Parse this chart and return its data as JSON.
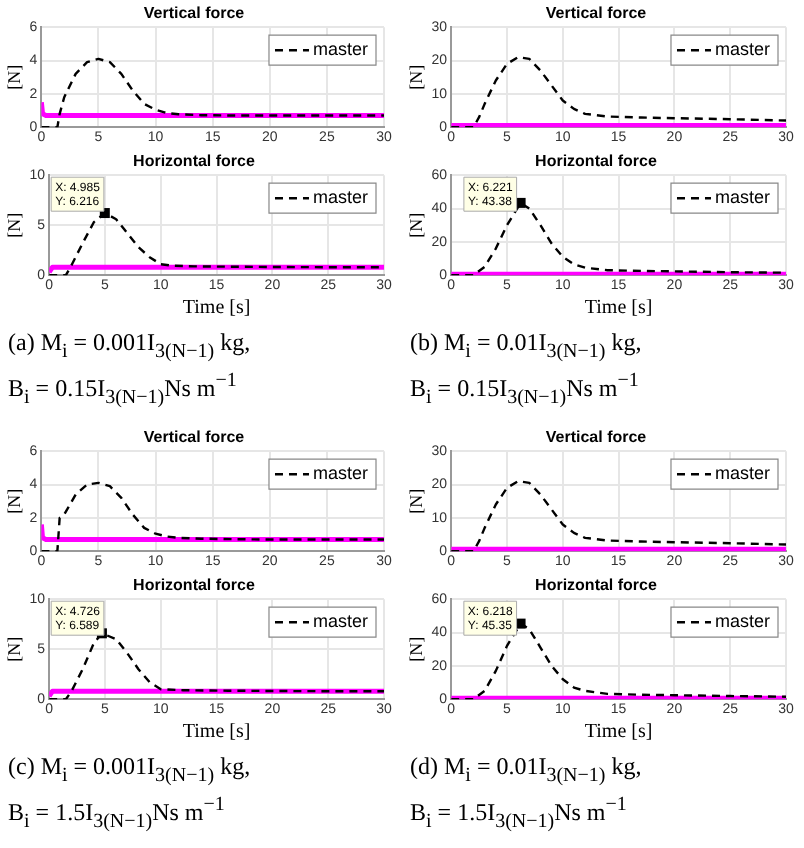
{
  "chart_data": [
    {
      "type": "line",
      "title": "Vertical force",
      "ylabel": "[N]",
      "xlim": [
        0,
        30
      ],
      "xticks": [
        0,
        5,
        10,
        15,
        20,
        25,
        30
      ],
      "ylim": [
        0,
        6
      ],
      "yticks": [
        0,
        2,
        4,
        6
      ],
      "grid": true,
      "legend": "top right",
      "series": [
        {
          "name": "master",
          "color": "#000000",
          "line_style": "dashed",
          "x": [
            0,
            1.4,
            1.6,
            2,
            3,
            4,
            5,
            6,
            7,
            8,
            9,
            10,
            11,
            12,
            14,
            17,
            20,
            25,
            30
          ],
          "values": [
            0,
            0,
            0.8,
            1.8,
            3.2,
            3.9,
            4.1,
            3.9,
            3.2,
            2.2,
            1.4,
            1.05,
            0.85,
            0.78,
            0.72,
            0.7,
            0.7,
            0.7,
            0.7
          ]
        },
        {
          "color": "#ff00ff",
          "line_style": "solid",
          "x": [
            0,
            0.1,
            0.4,
            30
          ],
          "values": [
            1.5,
            0.8,
            0.7,
            0.7
          ]
        }
      ]
    },
    {
      "type": "line",
      "title": "Horizontal force",
      "xlabel": "Time [s]",
      "ylabel": "[N]",
      "xlim": [
        0,
        30
      ],
      "xticks": [
        0,
        5,
        10,
        15,
        20,
        25,
        30
      ],
      "ylim": [
        0,
        10
      ],
      "yticks": [
        0,
        5,
        10
      ],
      "grid": true,
      "legend": "top right",
      "annotations": [
        {
          "text": "X: 4.985\nY: 6.216",
          "x": 4.985,
          "y": 6.216
        },
        "(a) M$_{i}$ = 0.001I$_{3(N−1)}$ kg,",
        "B$_{i}$ = 0.15I$_{3(N−1)}$Ns m$^{−1}$"
      ],
      "series": [
        {
          "name": "master",
          "color": "#000000",
          "line_style": "dashed",
          "x": [
            0,
            1.5,
            2,
            3,
            4,
            4.985,
            6,
            7,
            8,
            9,
            10,
            11,
            13,
            16,
            20,
            25,
            30
          ],
          "values": [
            0,
            0,
            1,
            3.2,
            5.3,
            6.216,
            5.6,
            4.2,
            2.8,
            1.8,
            1.1,
            0.95,
            0.88,
            0.85,
            0.82,
            0.8,
            0.8
          ]
        },
        {
          "color": "#ff00ff",
          "line_style": "solid",
          "x": [
            0,
            0.3,
            30
          ],
          "values": [
            0.3,
            0.8,
            0.8
          ]
        }
      ]
    },
    {
      "type": "line",
      "title": "Vertical force",
      "ylabel": "[N]",
      "xlim": [
        0,
        30
      ],
      "xticks": [
        0,
        5,
        10,
        15,
        20,
        25,
        30
      ],
      "ylim": [
        0,
        30
      ],
      "yticks": [
        0,
        10,
        20,
        30
      ],
      "grid": true,
      "legend": "top right",
      "series": [
        {
          "name": "master",
          "color": "#000000",
          "line_style": "dashed",
          "x": [
            0,
            2,
            2.5,
            3,
            4,
            5,
            6,
            7,
            8,
            9,
            10,
            11,
            12,
            14,
            17,
            20,
            25,
            30
          ],
          "values": [
            0,
            0,
            3,
            7,
            14,
            19,
            21,
            20.5,
            17,
            12.5,
            8,
            5.5,
            4,
            3.2,
            2.9,
            2.7,
            2.4,
            2
          ]
        },
        {
          "color": "#ff00ff",
          "line_style": "solid",
          "x": [
            0,
            30
          ],
          "values": [
            0.5,
            0.5
          ]
        }
      ]
    },
    {
      "type": "line",
      "title": "Horizontal force",
      "xlabel": "Time [s]",
      "ylabel": "[N]",
      "xlim": [
        0,
        30
      ],
      "xticks": [
        0,
        5,
        10,
        15,
        20,
        25,
        30
      ],
      "ylim": [
        0,
        60
      ],
      "yticks": [
        0,
        20,
        40,
        60
      ],
      "grid": true,
      "legend": "top right",
      "annotations": [
        {
          "text": "X: 6.221\nY: 43.38",
          "x": 6.221,
          "y": 43.38
        },
        "(b) M$_{i}$ = 0.01I$_{3(N−1)}$ kg,",
        "B$_{i}$ = 0.15I$_{3(N−1)}$Ns m$^{−1}$"
      ],
      "series": [
        {
          "name": "master",
          "color": "#000000",
          "line_style": "dashed",
          "x": [
            0,
            2,
            3,
            4,
            5,
            6.221,
            7,
            8,
            9,
            10,
            11,
            12,
            14,
            17,
            20,
            25,
            30
          ],
          "values": [
            0,
            0,
            5,
            16,
            30,
            43.38,
            40,
            30,
            19,
            11,
            6.5,
            4.5,
            3,
            2.6,
            2.3,
            1.8,
            1.5
          ]
        },
        {
          "color": "#ff00ff",
          "line_style": "solid",
          "x": [
            0,
            30
          ],
          "values": [
            0.6,
            0.6
          ]
        }
      ]
    },
    {
      "type": "line",
      "title": "Vertical force",
      "ylabel": "[N]",
      "xlim": [
        0,
        30
      ],
      "xticks": [
        0,
        5,
        10,
        15,
        20,
        25,
        30
      ],
      "ylim": [
        0,
        6
      ],
      "yticks": [
        0,
        2,
        4,
        6
      ],
      "grid": true,
      "legend": "top right",
      "series": [
        {
          "name": "master",
          "color": "#000000",
          "line_style": "dashed",
          "x": [
            0,
            1.4,
            1.6,
            2,
            3,
            4,
            5,
            6,
            7,
            8,
            9,
            10,
            11,
            12,
            14,
            17,
            20,
            25,
            30
          ],
          "values": [
            0,
            0,
            2,
            2.2,
            3.4,
            4,
            4.1,
            3.9,
            3.2,
            2.2,
            1.4,
            1.05,
            0.88,
            0.8,
            0.75,
            0.72,
            0.7,
            0.7,
            0.7
          ]
        },
        {
          "color": "#ff00ff",
          "line_style": "solid",
          "x": [
            0,
            0.1,
            0.4,
            30
          ],
          "values": [
            1.6,
            0.8,
            0.7,
            0.7
          ]
        }
      ]
    },
    {
      "type": "line",
      "title": "Horizontal force",
      "xlabel": "Time [s]",
      "ylabel": "[N]",
      "xlim": [
        0,
        30
      ],
      "xticks": [
        0,
        5,
        10,
        15,
        20,
        25,
        30
      ],
      "ylim": [
        0,
        10
      ],
      "yticks": [
        0,
        5,
        10
      ],
      "grid": true,
      "legend": "top right",
      "annotations": [
        {
          "text": "X: 4.726\nY: 6.589",
          "x": 4.726,
          "y": 6.589
        },
        "(c) M$_{i}$ = 0.001I$_{3(N−1)}$ kg,",
        "B$_{i}$ = 1.5I$_{3(N−1)}$Ns m$^{−1}$"
      ],
      "series": [
        {
          "name": "master",
          "color": "#000000",
          "line_style": "dashed",
          "x": [
            0,
            1.5,
            2,
            3,
            4,
            4.726,
            6,
            7,
            8,
            9,
            10,
            12,
            16,
            20,
            25,
            30
          ],
          "values": [
            0,
            0,
            0.8,
            3,
            5.6,
            6.589,
            6,
            4.6,
            3,
            1.7,
            1,
            0.9,
            0.85,
            0.82,
            0.8,
            0.8
          ]
        },
        {
          "color": "#ff00ff",
          "line_style": "solid",
          "x": [
            0,
            0.3,
            30
          ],
          "values": [
            0.3,
            0.8,
            0.8
          ]
        }
      ]
    },
    {
      "type": "line",
      "title": "Vertical force",
      "ylabel": "[N]",
      "xlim": [
        0,
        30
      ],
      "xticks": [
        0,
        5,
        10,
        15,
        20,
        25,
        30
      ],
      "ylim": [
        0,
        30
      ],
      "yticks": [
        0,
        10,
        20,
        30
      ],
      "grid": true,
      "legend": "top right",
      "series": [
        {
          "name": "master",
          "color": "#000000",
          "line_style": "dashed",
          "x": [
            0,
            2,
            2.5,
            3,
            4,
            5,
            6,
            7,
            8,
            9,
            10,
            11,
            12,
            14,
            17,
            20,
            25,
            30
          ],
          "values": [
            0,
            0,
            3,
            7,
            14,
            19,
            21,
            20.5,
            17,
            12.5,
            8,
            5.5,
            4,
            3.2,
            2.9,
            2.7,
            2.4,
            2
          ]
        },
        {
          "color": "#ff00ff",
          "line_style": "solid",
          "x": [
            0,
            30
          ],
          "values": [
            0.6,
            0.6
          ]
        }
      ]
    },
    {
      "type": "line",
      "title": "Horizontal force",
      "xlabel": "Time [s]",
      "ylabel": "[N]",
      "xlim": [
        0,
        30
      ],
      "xticks": [
        0,
        5,
        10,
        15,
        20,
        25,
        30
      ],
      "ylim": [
        0,
        60
      ],
      "yticks": [
        0,
        20,
        40,
        60
      ],
      "grid": true,
      "legend": "top right",
      "annotations": [
        {
          "text": "X: 6.218\nY: 45.35",
          "x": 6.218,
          "y": 45.35
        },
        "(d) M$_{i}$ = 0.01I$_{3(N−1)}$ kg,",
        "B$_{i}$ = 1.5I$_{3(N−1)}$Ns m$^{−1}$"
      ],
      "series": [
        {
          "name": "master",
          "color": "#000000",
          "line_style": "dashed",
          "x": [
            0,
            2,
            3,
            4,
            5,
            6.218,
            7,
            8,
            9,
            10,
            11,
            12,
            14,
            17,
            20,
            25,
            30
          ],
          "values": [
            0,
            0,
            5,
            17,
            32,
            45.35,
            42,
            31,
            20,
            12,
            7,
            5,
            3.2,
            2.7,
            2.4,
            1.9,
            1.5
          ]
        },
        {
          "color": "#ff00ff",
          "line_style": "solid",
          "x": [
            0,
            30
          ],
          "values": [
            0.6,
            0.6
          ]
        }
      ]
    }
  ]
}
